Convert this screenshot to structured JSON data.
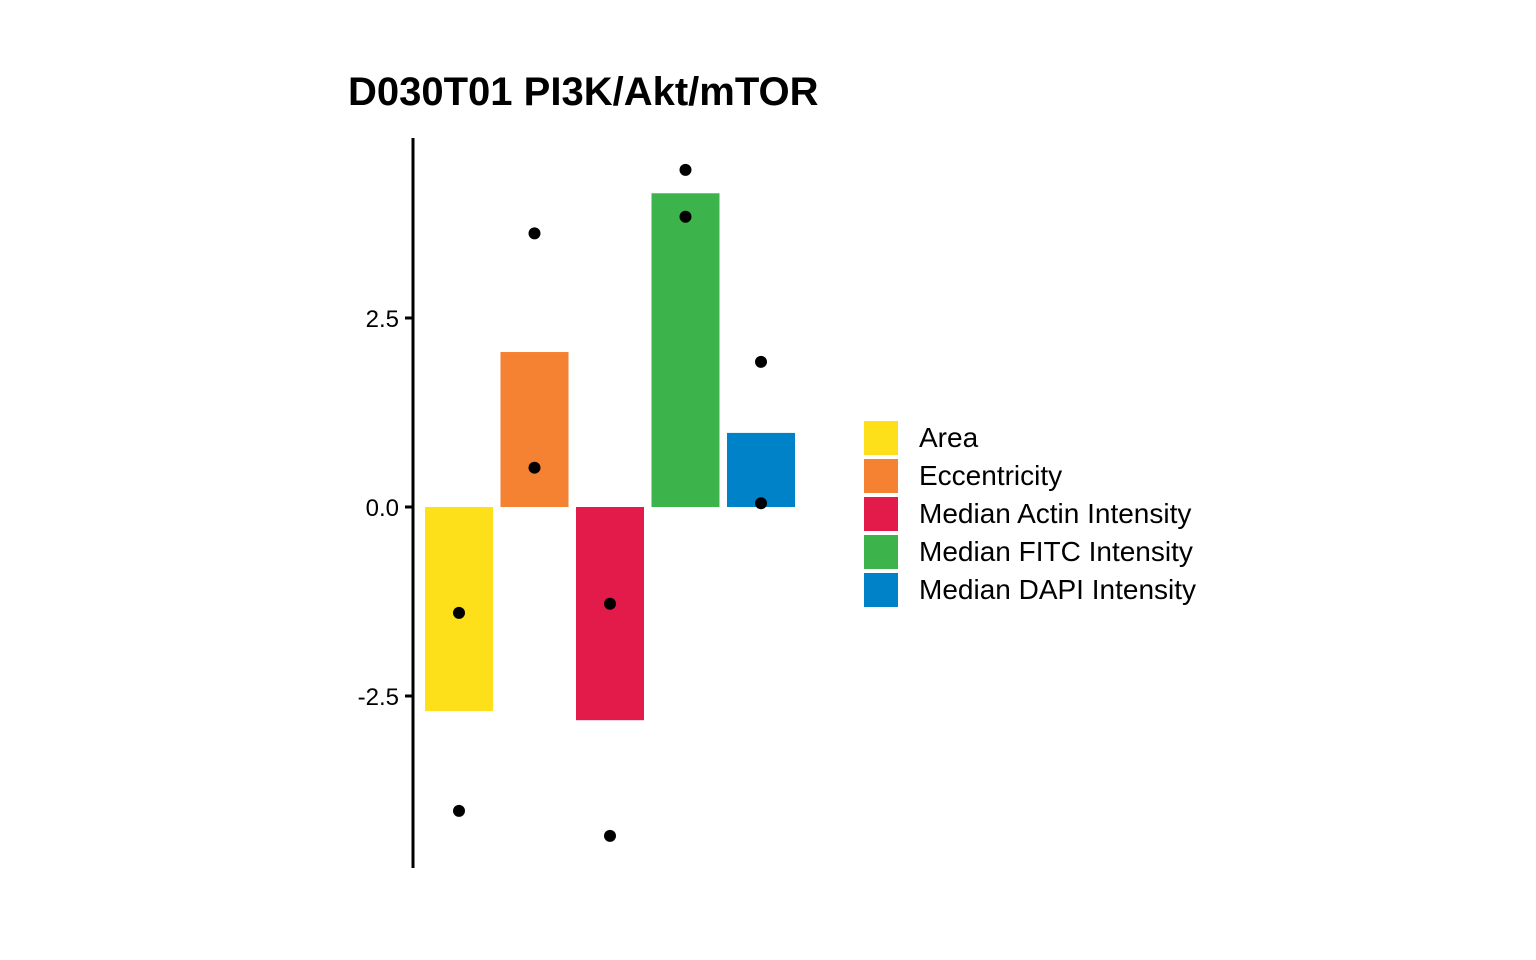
{
  "chart_data": {
    "type": "bar",
    "title": "D030T01 PI3K/Akt/mTOR",
    "xlabel": "",
    "ylabel": "",
    "ylim": [
      -4.75,
      4.9
    ],
    "y_ticks": [
      -2.5,
      0.0,
      2.5
    ],
    "y_tick_labels": [
      "-2.5",
      "0.0",
      "2.5"
    ],
    "grid": false,
    "legend_position": "right",
    "categories": [
      "Area",
      "Eccentricity",
      "Median Actin Intensity",
      "Median FITC Intensity",
      "Median DAPI Intensity"
    ],
    "values": [
      -2.7,
      2.05,
      -2.82,
      4.15,
      0.98
    ],
    "colors": [
      "#FDE01A",
      "#F58233",
      "#E31B4A",
      "#3CB44B",
      "#0082C8"
    ],
    "points": [
      [
        -1.4,
        -4.02
      ],
      [
        3.62,
        0.52
      ],
      [
        -1.28,
        -4.35
      ],
      [
        4.46,
        3.84
      ],
      [
        1.92,
        0.05
      ]
    ]
  }
}
